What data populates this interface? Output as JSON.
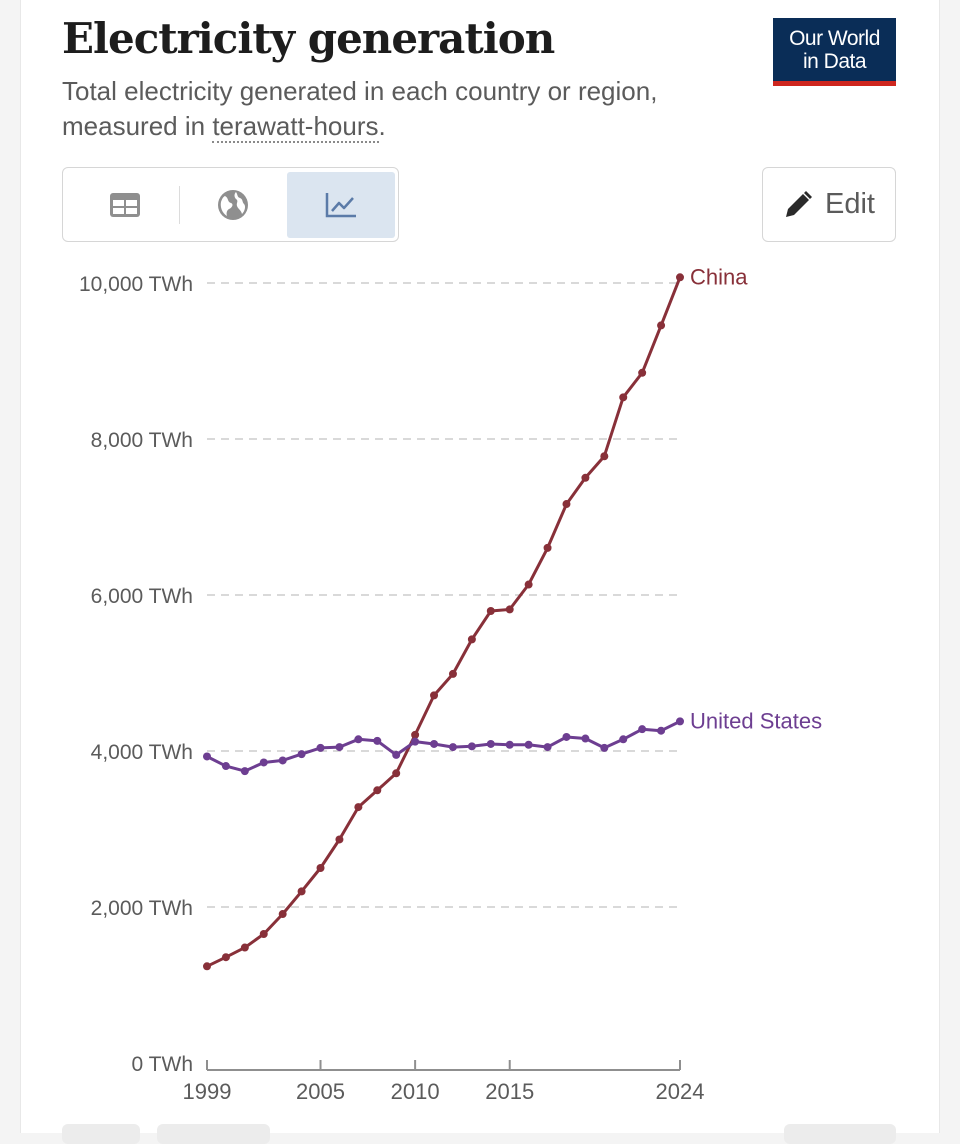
{
  "header": {
    "title": "Electricity generation",
    "subtitle_before": "Total electricity generated in each country or region, measured in ",
    "subtitle_link": "terawatt-hours",
    "subtitle_after": "."
  },
  "logo": {
    "line1": "Our World",
    "line2": "in Data"
  },
  "tabs": [
    {
      "icon": "table-icon",
      "active": false
    },
    {
      "icon": "globe-icon",
      "active": false
    },
    {
      "icon": "line-chart-icon",
      "active": true
    }
  ],
  "edit_button": {
    "label": "Edit",
    "icon": "pencil-icon"
  },
  "colors": {
    "china": "#883039",
    "us": "#6d3e91",
    "accent": "#0a2d57",
    "brand_red": "#ce261e"
  },
  "chart_data": {
    "type": "line",
    "x": [
      1999,
      2000,
      2001,
      2002,
      2003,
      2004,
      2005,
      2006,
      2007,
      2008,
      2009,
      2010,
      2011,
      2012,
      2013,
      2014,
      2015,
      2016,
      2017,
      2018,
      2019,
      2020,
      2021,
      2022,
      2023,
      2024
    ],
    "series": [
      {
        "name": "China",
        "values": [
          1240,
          1356,
          1480,
          1654,
          1910,
          2200,
          2500,
          2866,
          3281,
          3496,
          3714,
          4207,
          4713,
          4988,
          5431,
          5795,
          5815,
          6134,
          6604,
          7166,
          7503,
          7779,
          8534,
          8849,
          9456,
          10073
        ]
      },
      {
        "name": "United States",
        "values": [
          3930,
          3807,
          3742,
          3853,
          3879,
          3960,
          4040,
          4050,
          4150,
          4130,
          3950,
          4120,
          4090,
          4050,
          4060,
          4090,
          4080,
          4080,
          4050,
          4180,
          4160,
          4040,
          4150,
          4280,
          4260,
          4380
        ]
      }
    ],
    "y_ticks": [
      {
        "value": 0,
        "label": "0 TWh"
      },
      {
        "value": 2000,
        "label": "2,000 TWh"
      },
      {
        "value": 4000,
        "label": "4,000 TWh"
      },
      {
        "value": 6000,
        "label": "6,000 TWh"
      },
      {
        "value": 8000,
        "label": "8,000 TWh"
      },
      {
        "value": 10000,
        "label": "10,000 TWh"
      }
    ],
    "x_ticks": [
      {
        "value": 1999,
        "label": "1999"
      },
      {
        "value": 2005,
        "label": "2005"
      },
      {
        "value": 2010,
        "label": "2010"
      },
      {
        "value": 2015,
        "label": "2015"
      },
      {
        "value": 2024,
        "label": "2024"
      }
    ],
    "xlim": [
      1999,
      2024
    ],
    "ylim": [
      0,
      10000
    ],
    "grid": "horizontal-dashed",
    "legend": "end-of-line labels"
  }
}
